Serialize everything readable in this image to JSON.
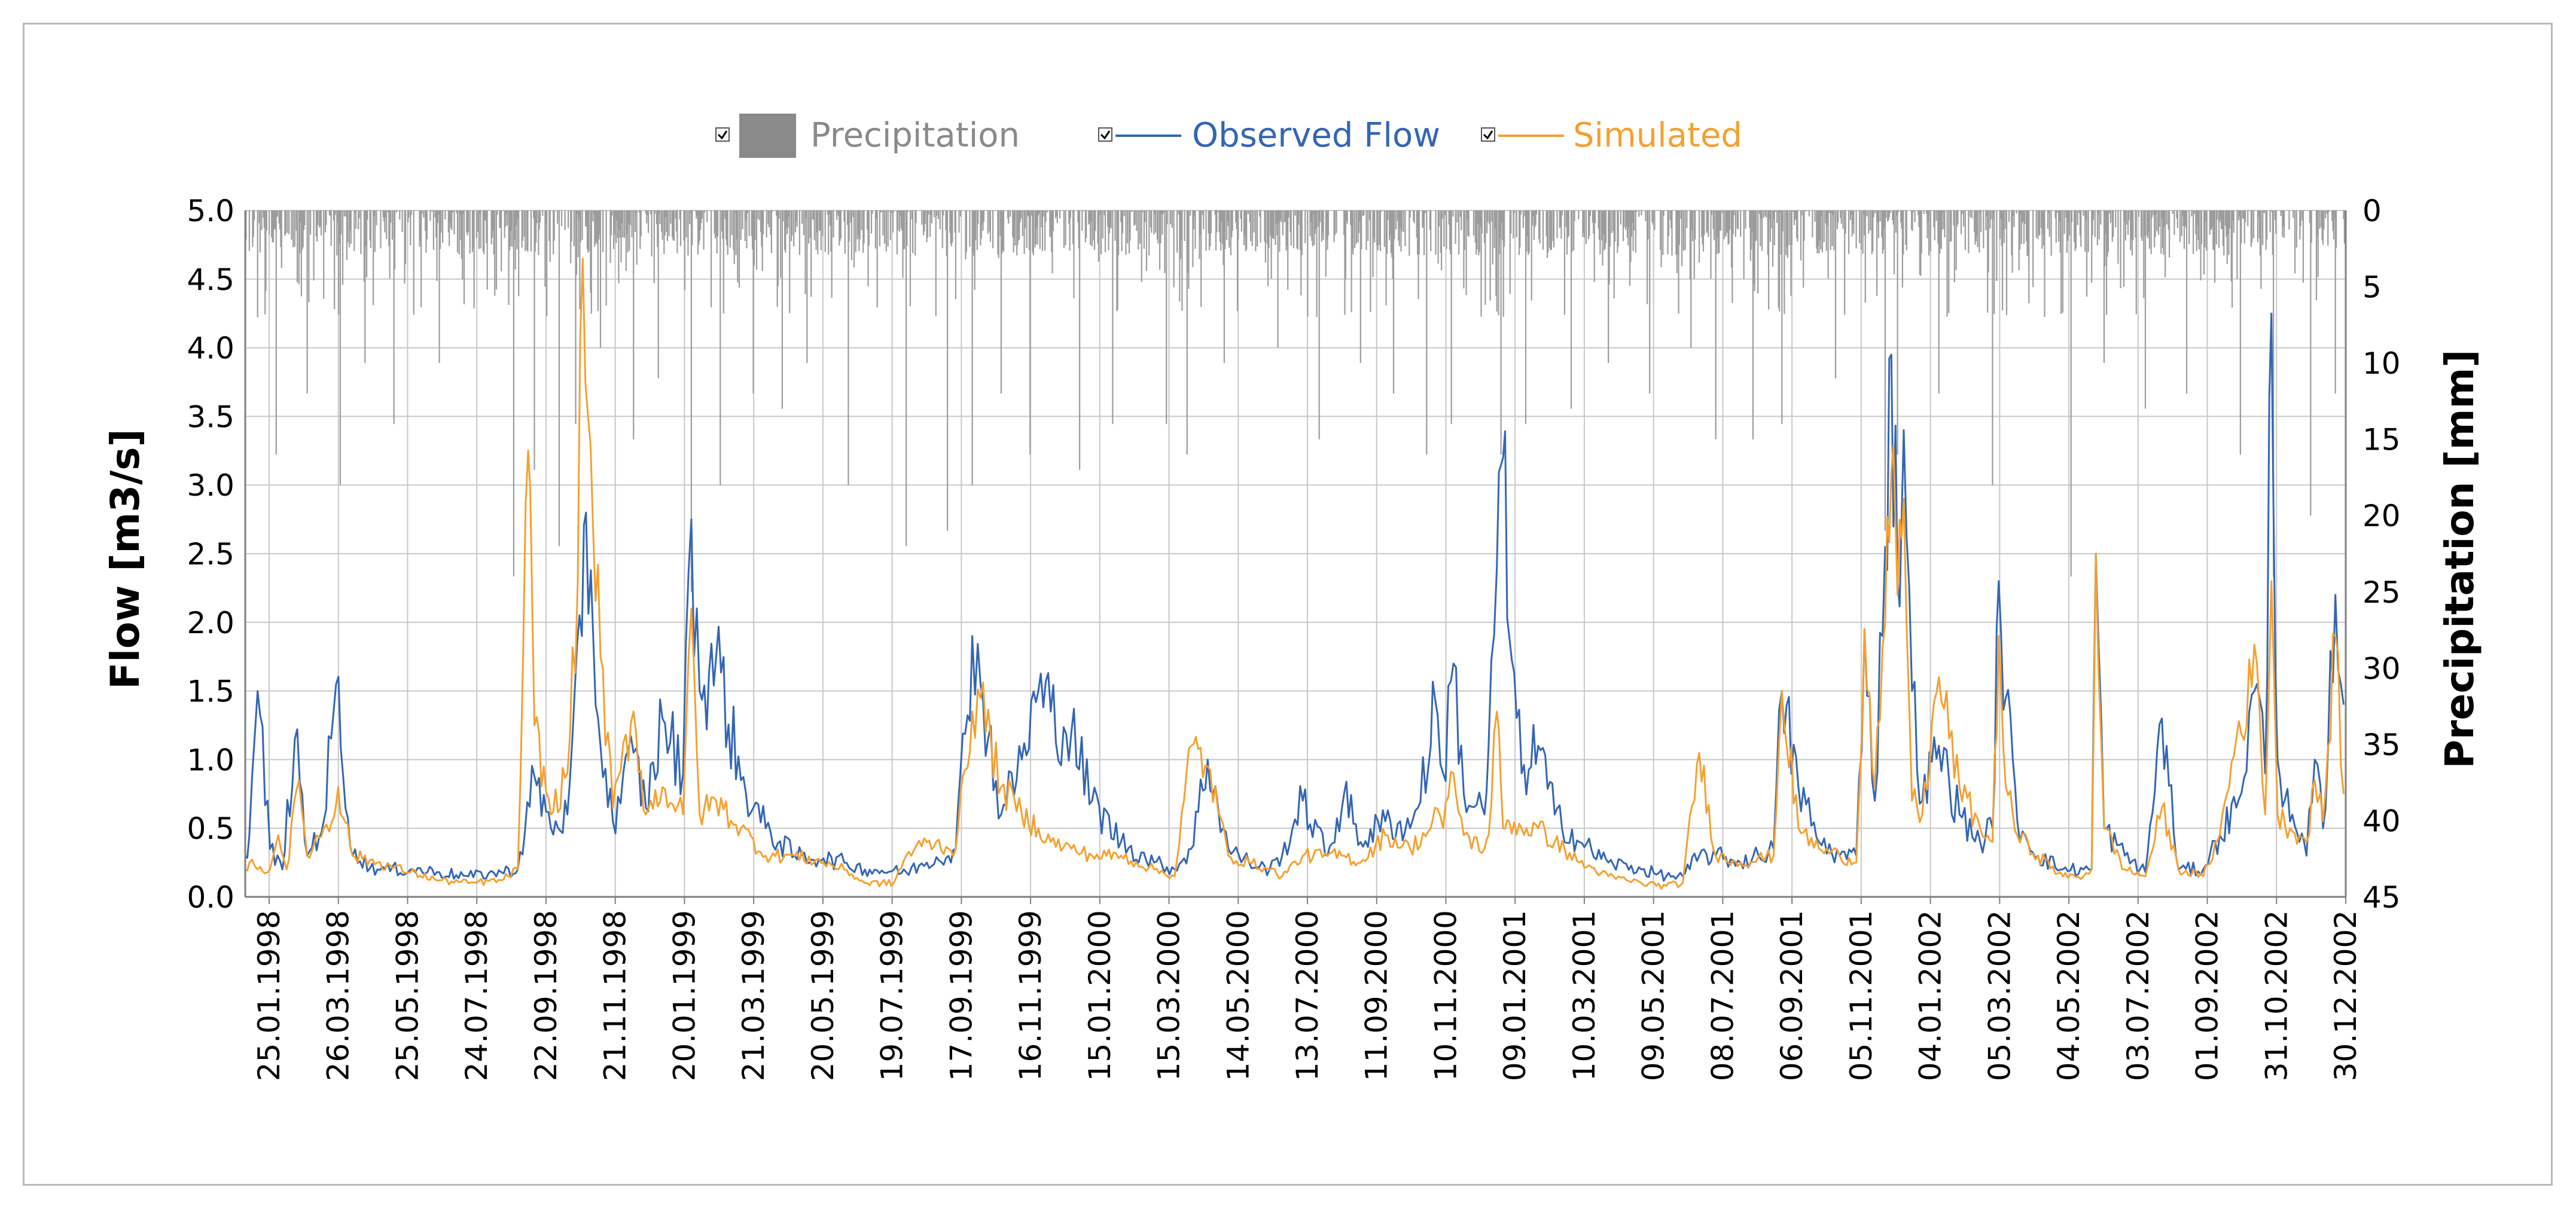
{
  "chart_data": {
    "type": "line",
    "title": "",
    "xlabel": "",
    "ylabel": "Flow [m3/s]",
    "y2label": "Precipitation [mm]",
    "ylim": [
      0,
      5
    ],
    "y2lim": [
      0,
      45
    ],
    "y2_inverted": true,
    "yticks": [
      "0.0",
      "0.5",
      "1.0",
      "1.5",
      "2.0",
      "2.5",
      "3.0",
      "3.5",
      "4.0",
      "4.5",
      "5.0"
    ],
    "y2ticks": [
      "0",
      "5",
      "10",
      "15",
      "20",
      "25",
      "30",
      "35",
      "40",
      "45"
    ],
    "x_start": "01.01.1998",
    "x_end": "31.12.2002",
    "x_ticks": [
      "25.01.1998",
      "26.03.1998",
      "25.05.1998",
      "24.07.1998",
      "22.09.1998",
      "21.11.1998",
      "20.01.1999",
      "21.03.1999",
      "20.05.1999",
      "19.07.1999",
      "17.09.1999",
      "16.11.1999",
      "15.01.2000",
      "15.03.2000",
      "14.05.2000",
      "13.07.2000",
      "11.09.2000",
      "10.11.2000",
      "09.01.2001",
      "10.03.2001",
      "09.05.2001",
      "08.07.2001",
      "06.09.2001",
      "05.11.2001",
      "04.01.2002",
      "05.03.2002",
      "04.05.2002",
      "03.07.2002",
      "01.09.2002",
      "31.10.2002",
      "30.12.2002"
    ],
    "legend_position": "top",
    "series": [
      {
        "name": "Precipitation",
        "kind": "bar",
        "axis": "right",
        "color": "#999999"
      },
      {
        "name": "Observed Flow",
        "kind": "line",
        "axis": "left",
        "color": "#3366b4"
      },
      {
        "name": "Simulated",
        "kind": "line",
        "axis": "left",
        "color": "#f5a030"
      }
    ],
    "observed_flow_keypoints": [
      [
        0,
        0.3
      ],
      [
        10,
        0.45
      ],
      [
        30,
        1.5
      ],
      [
        60,
        0.35
      ],
      [
        90,
        0.2
      ],
      [
        120,
        1.15
      ],
      [
        150,
        0.3
      ],
      [
        190,
        0.55
      ],
      [
        220,
        1.55
      ],
      [
        260,
        0.3
      ],
      [
        320,
        0.2
      ],
      [
        400,
        0.2
      ],
      [
        470,
        0.18
      ],
      [
        540,
        0.15
      ],
      [
        620,
        0.18
      ],
      [
        660,
        0.2
      ],
      [
        700,
        0.88
      ],
      [
        740,
        0.5
      ],
      [
        780,
        0.6
      ],
      [
        815,
        1.9
      ],
      [
        825,
        2.8
      ],
      [
        860,
        1.1
      ],
      [
        890,
        0.55
      ],
      [
        940,
        1.05
      ],
      [
        970,
        0.65
      ],
      [
        1010,
        1.3
      ],
      [
        1060,
        0.9
      ],
      [
        1080,
        2.75
      ],
      [
        1100,
        1.5
      ],
      [
        1140,
        1.75
      ],
      [
        1200,
        0.85
      ],
      [
        1260,
        0.5
      ],
      [
        1330,
        0.3
      ],
      [
        1400,
        0.28
      ],
      [
        1450,
        0.25
      ],
      [
        1500,
        0.2
      ],
      [
        1600,
        0.18
      ],
      [
        1650,
        0.25
      ],
      [
        1720,
        0.35
      ],
      [
        1760,
        1.9
      ],
      [
        1780,
        1.55
      ],
      [
        1830,
        0.6
      ],
      [
        1880,
        1.0
      ],
      [
        1920,
        1.5
      ],
      [
        1950,
        1.35
      ],
      [
        2000,
        1.2
      ],
      [
        2050,
        0.7
      ],
      [
        2120,
        0.4
      ],
      [
        2200,
        0.25
      ],
      [
        2250,
        0.2
      ],
      [
        2290,
        0.35
      ],
      [
        2330,
        1.0
      ],
      [
        2380,
        0.35
      ],
      [
        2430,
        0.25
      ],
      [
        2480,
        0.2
      ],
      [
        2510,
        0.3
      ],
      [
        2560,
        0.7
      ],
      [
        2620,
        0.3
      ],
      [
        2660,
        0.75
      ],
      [
        2700,
        0.4
      ],
      [
        2760,
        0.55
      ],
      [
        2820,
        0.5
      ],
      [
        2870,
        1.1
      ],
      [
        2880,
        1.45
      ],
      [
        2900,
        0.9
      ],
      [
        2925,
        1.7
      ],
      [
        2950,
        0.75
      ],
      [
        3000,
        0.6
      ],
      [
        3010,
        1.1
      ],
      [
        3030,
        2.4
      ],
      [
        3045,
        3.2
      ],
      [
        3060,
        1.9
      ],
      [
        3090,
        0.9
      ],
      [
        3130,
        1.1
      ],
      [
        3170,
        0.6
      ],
      [
        3230,
        0.4
      ],
      [
        3300,
        0.25
      ],
      [
        3380,
        0.2
      ],
      [
        3440,
        0.15
      ],
      [
        3480,
        0.15
      ],
      [
        3520,
        0.3
      ],
      [
        3560,
        0.3
      ],
      [
        3620,
        0.25
      ],
      [
        3700,
        0.35
      ],
      [
        3720,
        1.5
      ],
      [
        3760,
        0.8
      ],
      [
        3810,
        0.4
      ],
      [
        3860,
        0.3
      ],
      [
        3900,
        0.3
      ],
      [
        3920,
        1.95
      ],
      [
        3945,
        0.7
      ],
      [
        3970,
        2.55
      ],
      [
        3985,
        3.95
      ],
      [
        4000,
        2.3
      ],
      [
        4015,
        3.4
      ],
      [
        4035,
        1.5
      ],
      [
        4060,
        0.7
      ],
      [
        4100,
        1.1
      ],
      [
        4150,
        0.6
      ],
      [
        4200,
        0.4
      ],
      [
        4230,
        0.5
      ],
      [
        4245,
        2.3
      ],
      [
        4262,
        1.45
      ],
      [
        4290,
        0.55
      ],
      [
        4340,
        0.3
      ],
      [
        4400,
        0.2
      ],
      [
        4450,
        0.2
      ],
      [
        4470,
        0.2
      ],
      [
        4480,
        2.5
      ],
      [
        4500,
        0.5
      ],
      [
        4550,
        0.3
      ],
      [
        4600,
        0.18
      ],
      [
        4640,
        1.3
      ],
      [
        4680,
        0.2
      ],
      [
        4740,
        0.2
      ],
      [
        4780,
        0.45
      ],
      [
        4820,
        0.65
      ],
      [
        4870,
        1.55
      ],
      [
        4890,
        0.9
      ],
      [
        4905,
        4.25
      ],
      [
        4920,
        1.0
      ],
      [
        4950,
        0.55
      ],
      [
        4990,
        0.3
      ],
      [
        5010,
        1.0
      ],
      [
        5030,
        0.5
      ],
      [
        5060,
        2.2
      ],
      [
        5080,
        1.4
      ]
    ],
    "simulated_keypoints": [
      [
        0,
        0.2
      ],
      [
        10,
        0.25
      ],
      [
        30,
        0.2
      ],
      [
        60,
        0.2
      ],
      [
        80,
        0.45
      ],
      [
        100,
        0.2
      ],
      [
        130,
        0.85
      ],
      [
        150,
        0.3
      ],
      [
        190,
        0.5
      ],
      [
        210,
        0.55
      ],
      [
        225,
        0.8
      ],
      [
        260,
        0.3
      ],
      [
        320,
        0.25
      ],
      [
        400,
        0.18
      ],
      [
        470,
        0.12
      ],
      [
        540,
        0.1
      ],
      [
        620,
        0.12
      ],
      [
        660,
        0.2
      ],
      [
        685,
        3.25
      ],
      [
        700,
        1.25
      ],
      [
        740,
        0.6
      ],
      [
        780,
        0.9
      ],
      [
        805,
        2.3
      ],
      [
        817,
        4.65
      ],
      [
        830,
        3.5
      ],
      [
        860,
        1.75
      ],
      [
        890,
        0.65
      ],
      [
        940,
        1.35
      ],
      [
        970,
        0.6
      ],
      [
        1010,
        0.8
      ],
      [
        1060,
        0.6
      ],
      [
        1080,
        2.1
      ],
      [
        1100,
        0.6
      ],
      [
        1140,
        0.7
      ],
      [
        1200,
        0.5
      ],
      [
        1260,
        0.3
      ],
      [
        1330,
        0.3
      ],
      [
        1400,
        0.25
      ],
      [
        1450,
        0.2
      ],
      [
        1500,
        0.1
      ],
      [
        1570,
        0.1
      ],
      [
        1600,
        0.3
      ],
      [
        1650,
        0.4
      ],
      [
        1720,
        0.35
      ],
      [
        1760,
        1.35
      ],
      [
        1780,
        1.45
      ],
      [
        1830,
        0.8
      ],
      [
        1880,
        0.6
      ],
      [
        1920,
        0.5
      ],
      [
        1950,
        0.4
      ],
      [
        2000,
        0.35
      ],
      [
        2050,
        0.3
      ],
      [
        2120,
        0.3
      ],
      [
        2200,
        0.2
      ],
      [
        2250,
        0.15
      ],
      [
        2290,
        1.1
      ],
      [
        2330,
        0.95
      ],
      [
        2380,
        0.3
      ],
      [
        2430,
        0.25
      ],
      [
        2480,
        0.2
      ],
      [
        2510,
        0.15
      ],
      [
        2560,
        0.3
      ],
      [
        2620,
        0.3
      ],
      [
        2660,
        0.3
      ],
      [
        2700,
        0.25
      ],
      [
        2760,
        0.45
      ],
      [
        2820,
        0.35
      ],
      [
        2870,
        0.5
      ],
      [
        2880,
        0.65
      ],
      [
        2900,
        0.5
      ],
      [
        2925,
        0.9
      ],
      [
        2950,
        0.45
      ],
      [
        3000,
        0.35
      ],
      [
        3010,
        0.45
      ],
      [
        3030,
        1.35
      ],
      [
        3045,
        0.5
      ],
      [
        3060,
        0.55
      ],
      [
        3090,
        0.5
      ],
      [
        3130,
        0.5
      ],
      [
        3170,
        0.4
      ],
      [
        3230,
        0.25
      ],
      [
        3300,
        0.15
      ],
      [
        3380,
        0.1
      ],
      [
        3440,
        0.08
      ],
      [
        3480,
        0.1
      ],
      [
        3520,
        1.05
      ],
      [
        3560,
        0.3
      ],
      [
        3620,
        0.25
      ],
      [
        3700,
        0.3
      ],
      [
        3720,
        1.5
      ],
      [
        3760,
        0.5
      ],
      [
        3810,
        0.35
      ],
      [
        3860,
        0.3
      ],
      [
        3900,
        0.25
      ],
      [
        3920,
        1.95
      ],
      [
        3945,
        0.8
      ],
      [
        3970,
        2.0
      ],
      [
        3985,
        3.1
      ],
      [
        4000,
        2.2
      ],
      [
        4015,
        2.9
      ],
      [
        4035,
        0.7
      ],
      [
        4060,
        0.6
      ],
      [
        4100,
        1.6
      ],
      [
        4150,
        0.8
      ],
      [
        4200,
        0.5
      ],
      [
        4230,
        0.4
      ],
      [
        4245,
        1.9
      ],
      [
        4262,
        0.8
      ],
      [
        4290,
        0.45
      ],
      [
        4340,
        0.3
      ],
      [
        4400,
        0.15
      ],
      [
        4450,
        0.15
      ],
      [
        4470,
        0.2
      ],
      [
        4480,
        2.5
      ],
      [
        4500,
        0.5
      ],
      [
        4550,
        0.2
      ],
      [
        4600,
        0.15
      ],
      [
        4640,
        0.65
      ],
      [
        4680,
        0.2
      ],
      [
        4740,
        0.15
      ],
      [
        4780,
        0.45
      ],
      [
        4820,
        1.15
      ],
      [
        4870,
        1.7
      ],
      [
        4890,
        0.6
      ],
      [
        4905,
        2.3
      ],
      [
        4920,
        0.6
      ],
      [
        4950,
        0.5
      ],
      [
        4990,
        0.4
      ],
      [
        5010,
        0.85
      ],
      [
        5030,
        0.55
      ],
      [
        5060,
        1.9
      ],
      [
        5080,
        0.75
      ]
    ],
    "precipitation_keypoints": [
      [
        30,
        7
      ],
      [
        75,
        16
      ],
      [
        150,
        12
      ],
      [
        230,
        18
      ],
      [
        290,
        10
      ],
      [
        360,
        14
      ],
      [
        470,
        10
      ],
      [
        650,
        24
      ],
      [
        700,
        17
      ],
      [
        760,
        22
      ],
      [
        800,
        14
      ],
      [
        860,
        9
      ],
      [
        940,
        15
      ],
      [
        1000,
        11
      ],
      [
        1080,
        25
      ],
      [
        1150,
        18
      ],
      [
        1230,
        12
      ],
      [
        1300,
        13
      ],
      [
        1360,
        10
      ],
      [
        1460,
        18
      ],
      [
        1600,
        22
      ],
      [
        1700,
        21
      ],
      [
        1760,
        18
      ],
      [
        1830,
        12
      ],
      [
        1900,
        16
      ],
      [
        2020,
        17
      ],
      [
        2100,
        14
      ],
      [
        2230,
        14
      ],
      [
        2280,
        16
      ],
      [
        2370,
        10
      ],
      [
        2500,
        9
      ],
      [
        2600,
        15
      ],
      [
        2700,
        10
      ],
      [
        2780,
        12
      ],
      [
        2860,
        16
      ],
      [
        2920,
        14
      ],
      [
        3040,
        16
      ],
      [
        3100,
        14
      ],
      [
        3210,
        13
      ],
      [
        3300,
        10
      ],
      [
        3400,
        12
      ],
      [
        3500,
        9
      ],
      [
        3560,
        15
      ],
      [
        3650,
        15
      ],
      [
        3720,
        14
      ],
      [
        3850,
        11
      ],
      [
        3970,
        21
      ],
      [
        4000,
        16
      ],
      [
        4100,
        12
      ],
      [
        4230,
        18
      ],
      [
        4420,
        24
      ],
      [
        4500,
        10
      ],
      [
        4600,
        13
      ],
      [
        4700,
        12
      ],
      [
        4830,
        16
      ],
      [
        4910,
        24
      ],
      [
        5000,
        20
      ],
      [
        5060,
        12
      ]
    ]
  },
  "legend": {
    "precipitation": "Precipitation",
    "observed": "Observed Flow",
    "simulated": "Simulated"
  }
}
